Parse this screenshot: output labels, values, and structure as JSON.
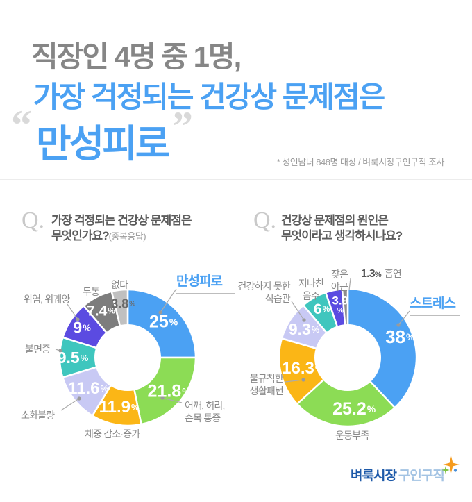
{
  "header": {
    "title_line1": "직장인 4명 중 1명,",
    "title_line2": "가장 걱정되는 건강상 문제점은",
    "title_line3": "만성피로",
    "quote_open": "“",
    "quote_close": "”",
    "source_note": "* 성인남녀 848명 대상 / 벼룩시장구인구직 조사"
  },
  "questions": {
    "left": {
      "q_mark": "Q.",
      "line1": "가장 걱정되는 건강상 문제점은",
      "line2": "무엇인가요?",
      "note": "(중복응답)"
    },
    "right": {
      "q_mark": "Q.",
      "line1": "건강상 문제점의 원인은",
      "line2": "무엇이라고 생각하시나요?"
    }
  },
  "chart_data": [
    {
      "type": "pie",
      "donut": true,
      "title": "가장 걱정되는 건강상 문제점은 무엇인가요?(중복응답)",
      "unit": "%",
      "start_angle_deg": 0,
      "direction": "clockwise",
      "categories": [
        "만성피로",
        "어깨, 허리, 손목 통증",
        "체중 감소·증가",
        "소화불량",
        "불면증",
        "위염, 위궤양",
        "두통",
        "없다"
      ],
      "values": [
        25,
        21.8,
        11.9,
        11.6,
        9.5,
        9,
        7.4,
        3.8
      ],
      "colors": [
        "#4BA1F3",
        "#8CDC55",
        "#FBB616",
        "#C8C9F4",
        "#3FC6BE",
        "#5B4BE1",
        "#7D7D7D",
        "#C0C0C0"
      ],
      "highlight_index": 0,
      "highlight_color": "#4BA1F3"
    },
    {
      "type": "pie",
      "donut": true,
      "title": "건강상 문제점의 원인은 무엇이라고 생각하시나요?",
      "unit": "%",
      "start_angle_deg": 0,
      "direction": "clockwise",
      "categories": [
        "스트레스",
        "운동부족",
        "불규칙한 생활패턴",
        "건강하지 못한 식습관",
        "지나친 음주",
        "잦은 야근",
        "흡연"
      ],
      "values": [
        38,
        25.2,
        16.3,
        9.3,
        6,
        3.9,
        1.3
      ],
      "colors": [
        "#4BA1F3",
        "#8CDC55",
        "#FBB616",
        "#C8C9F4",
        "#3FC6BE",
        "#5B4BE1",
        "#8C8C8C"
      ],
      "highlight_index": 0,
      "highlight_color": "#4BA1F3"
    }
  ],
  "footer": {
    "logo_text_primary": "벼룩시장",
    "logo_text_secondary": "구인구직",
    "logo_icon": "sparkle-icon"
  }
}
